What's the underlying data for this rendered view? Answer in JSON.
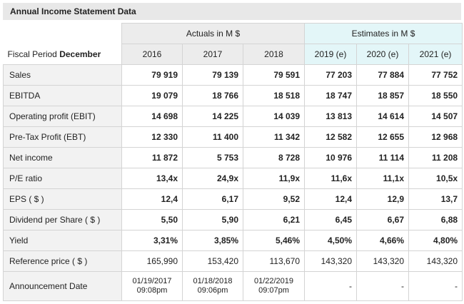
{
  "title": "Annual Income Statement Data",
  "fiscal_period_prefix": "Fiscal Period",
  "fiscal_period_month": "December",
  "actuals_label": "Actuals in M $",
  "estimates_label": "Estimates in M $",
  "years": [
    "2016",
    "2017",
    "2018",
    "2019 (e)",
    "2020 (e)",
    "2021 (e)"
  ],
  "rows": [
    {
      "label": "Sales",
      "values": [
        "79 919",
        "79 139",
        "79 591",
        "77 203",
        "77 884",
        "77 752"
      ]
    },
    {
      "label": "EBITDA",
      "values": [
        "19 079",
        "18 766",
        "18 518",
        "18 747",
        "18 857",
        "18 550"
      ]
    },
    {
      "label": "Operating profit (EBIT)",
      "values": [
        "14 698",
        "14 225",
        "14 039",
        "13 813",
        "14 614",
        "14 507"
      ]
    },
    {
      "label": "Pre-Tax Profit (EBT)",
      "values": [
        "12 330",
        "11 400",
        "11 342",
        "12 582",
        "12 655",
        "12 968"
      ]
    },
    {
      "label": "Net income",
      "values": [
        "11 872",
        "5 753",
        "8 728",
        "10 976",
        "11 114",
        "11 208"
      ]
    },
    {
      "label": "P/E ratio",
      "values": [
        "13,4x",
        "24,9x",
        "11,9x",
        "11,6x",
        "11,1x",
        "10,5x"
      ]
    },
    {
      "label": "EPS ( $ )",
      "values": [
        "12,4",
        "6,17",
        "9,52",
        "12,4",
        "12,9",
        "13,7"
      ]
    },
    {
      "label": "Dividend per Share ( $ )",
      "values": [
        "5,50",
        "5,90",
        "6,21",
        "6,45",
        "6,67",
        "6,88"
      ]
    },
    {
      "label": "Yield",
      "values": [
        "3,31%",
        "3,85%",
        "5,46%",
        "4,50%",
        "4,66%",
        "4,80%"
      ]
    },
    {
      "label": "Reference price ( $ )",
      "values": [
        "165,990",
        "153,420",
        "113,670",
        "143,320",
        "143,320",
        "143,320"
      ]
    }
  ],
  "announcement": {
    "label": "Announcement Date",
    "dates": [
      {
        "date": "01/19/2017",
        "time": "09:08pm"
      },
      {
        "date": "01/18/2018",
        "time": "09:06pm"
      },
      {
        "date": "01/22/2019",
        "time": "09:07pm"
      }
    ],
    "estimates": [
      "-",
      "-",
      "-"
    ]
  }
}
